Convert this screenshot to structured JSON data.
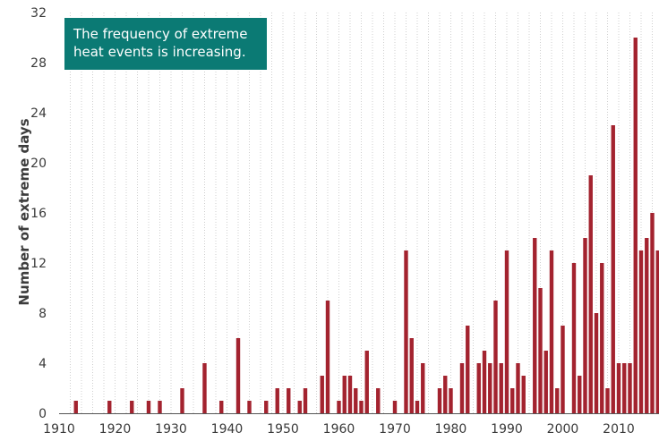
{
  "chart_data": {
    "type": "bar",
    "title": "",
    "xlabel": "",
    "ylabel": "Number of extreme days",
    "annotation": [
      "The frequency of extreme",
      "heat events is increasing."
    ],
    "xlim": [
      1910,
      2016
    ],
    "ylim": [
      0,
      32
    ],
    "x_ticks": [
      "1910",
      "1920",
      "1930",
      "1940",
      "1950",
      "1960",
      "1970",
      "1980",
      "1990",
      "2000",
      "2010"
    ],
    "y_ticks": [
      "0",
      "4",
      "8",
      "12",
      "16",
      "20",
      "24",
      "28",
      "32"
    ],
    "grid": "vertical dotted",
    "bar_color": "#a3232f",
    "annotation_color": "#0b7a74",
    "x": [
      1913,
      1919,
      1923,
      1926,
      1928,
      1932,
      1936,
      1939,
      1942,
      1944,
      1947,
      1949,
      1951,
      1953,
      1954,
      1957,
      1958,
      1960,
      1961,
      1962,
      1963,
      1964,
      1965,
      1967,
      1970,
      1972,
      1973,
      1974,
      1975,
      1978,
      1979,
      1980,
      1982,
      1983,
      1985,
      1986,
      1987,
      1988,
      1989,
      1990,
      1991,
      1992,
      1993,
      1995,
      1996,
      1997,
      1998,
      1999,
      2000,
      2002,
      2003,
      2004,
      2005,
      2006,
      2007,
      2008,
      2009,
      2010,
      2011,
      2012,
      2013,
      2014,
      2015,
      2016,
      2017
    ],
    "values": [
      1,
      1,
      1,
      1,
      1,
      2,
      4,
      1,
      6,
      1,
      1,
      2,
      2,
      1,
      2,
      3,
      9,
      1,
      3,
      3,
      2,
      1,
      5,
      2,
      1,
      13,
      6,
      1,
      4,
      2,
      3,
      2,
      4,
      7,
      4,
      5,
      4,
      9,
      4,
      13,
      2,
      4,
      3,
      14,
      10,
      5,
      13,
      2,
      7,
      12,
      3,
      14,
      19,
      8,
      12,
      2,
      23,
      4,
      4,
      4,
      30,
      13,
      14,
      16,
      13
    ]
  }
}
